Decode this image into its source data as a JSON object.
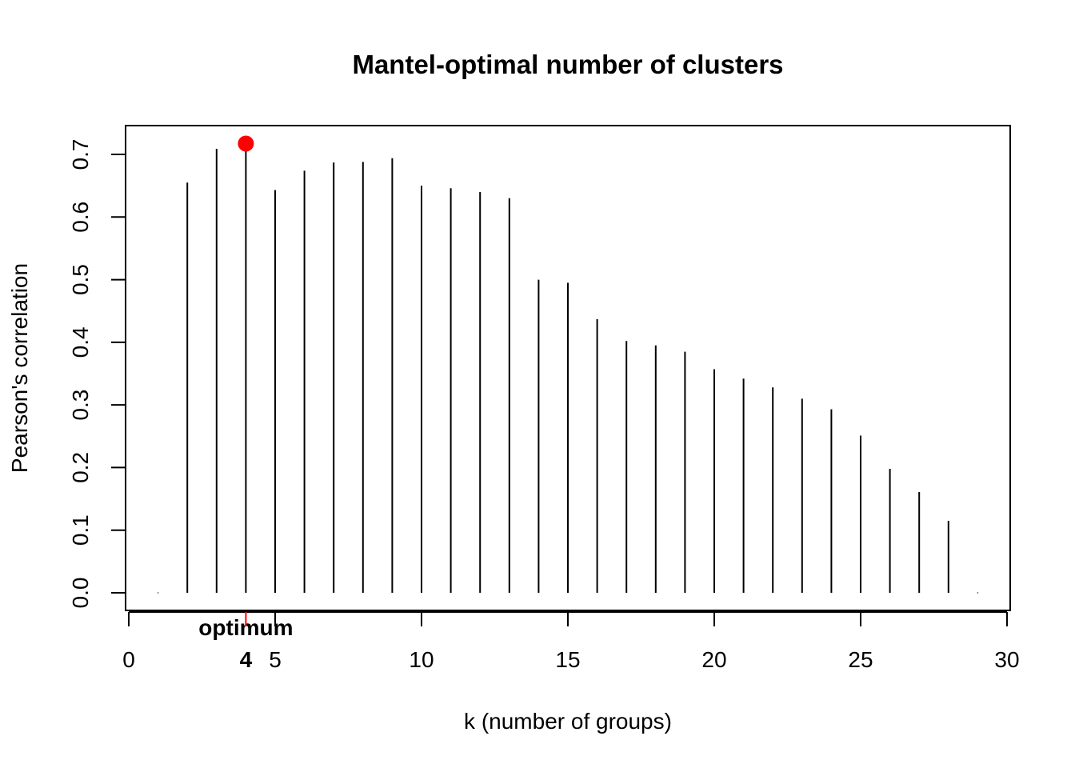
{
  "chart_data": {
    "type": "bar",
    "subtype": "vertical-lines",
    "title": "Mantel-optimal number of clusters",
    "xlabel": "k (number of groups)",
    "ylabel": "Pearson's correlation",
    "xlim": [
      0,
      30
    ],
    "ylim": [
      0,
      0.7
    ],
    "xticks": [
      0,
      5,
      10,
      15,
      20,
      25,
      30
    ],
    "yticks": [
      "0.0",
      "0.1",
      "0.2",
      "0.3",
      "0.4",
      "0.5",
      "0.6",
      "0.7"
    ],
    "x": [
      1,
      2,
      3,
      4,
      5,
      6,
      7,
      8,
      9,
      10,
      11,
      12,
      13,
      14,
      15,
      16,
      17,
      18,
      19,
      20,
      21,
      22,
      23,
      24,
      25,
      26,
      27,
      28,
      29
    ],
    "values": [
      0,
      0.655,
      0.709,
      0.716,
      0.643,
      0.674,
      0.687,
      0.688,
      0.694,
      0.65,
      0.646,
      0.64,
      0.63,
      0.5,
      0.495,
      0.437,
      0.402,
      0.395,
      0.385,
      0.357,
      0.342,
      0.328,
      0.31,
      0.293,
      0.251,
      0.198,
      0.161,
      0.115,
      0
    ],
    "optimum": {
      "k": 4,
      "label": "optimum",
      "tick_label": "4",
      "value": 0.716
    },
    "grid": false,
    "colors": {
      "line": "#000000",
      "highlight": "#ff0000"
    }
  }
}
